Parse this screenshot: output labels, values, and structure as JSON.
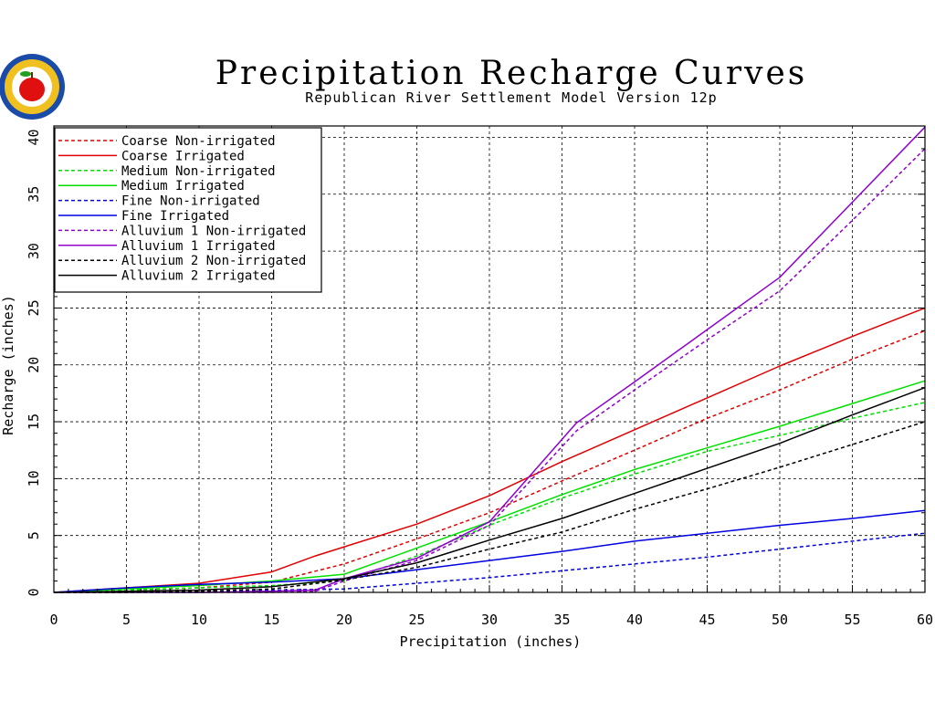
{
  "chart_data": {
    "type": "line",
    "title": "Precipitation Recharge Curves",
    "subtitle": "Republican River Settlement Model Version 12p",
    "xlabel": "Precipitation (inches)",
    "ylabel": "Recharge (inches)",
    "xlim": [
      0,
      60
    ],
    "ylim": [
      0,
      41
    ],
    "xticks": [
      0,
      5,
      10,
      15,
      20,
      25,
      30,
      35,
      40,
      45,
      50,
      55,
      60
    ],
    "yticks": [
      0,
      5,
      10,
      15,
      20,
      25,
      30,
      35,
      40
    ],
    "grid": true,
    "legend_position": "top-left",
    "series": [
      {
        "name": "Coarse Non-irrigated",
        "color": "#e00000",
        "dash": true,
        "x": [
          0,
          5,
          10,
          15,
          20,
          25,
          30,
          35,
          40,
          45,
          50,
          55,
          60
        ],
        "y": [
          0,
          0.2,
          0.4,
          0.9,
          2.5,
          4.7,
          7.0,
          9.8,
          12.5,
          15.3,
          17.8,
          20.5,
          23.0
        ]
      },
      {
        "name": "Coarse Irrigated",
        "color": "#e00000",
        "dash": false,
        "x": [
          0,
          5,
          10,
          15,
          18,
          20,
          25,
          30,
          35,
          40,
          45,
          50,
          55,
          60
        ],
        "y": [
          0,
          0.4,
          0.8,
          1.8,
          3.2,
          4.0,
          6.0,
          8.5,
          11.5,
          14.3,
          17.1,
          19.9,
          22.5,
          25.0
        ]
      },
      {
        "name": "Medium Non-irrigated",
        "color": "#00e000",
        "dash": true,
        "x": [
          0,
          5,
          10,
          15,
          20,
          25,
          30,
          35,
          40,
          45,
          50,
          55,
          60
        ],
        "y": [
          0,
          0.2,
          0.4,
          0.6,
          1.0,
          3.2,
          5.9,
          8.3,
          10.4,
          12.4,
          13.8,
          15.3,
          16.7
        ]
      },
      {
        "name": "Medium Irrigated",
        "color": "#00e000",
        "dash": false,
        "x": [
          0,
          5,
          10,
          15,
          20,
          25,
          30,
          35,
          40,
          45,
          50,
          55,
          60
        ],
        "y": [
          0,
          0.3,
          0.6,
          1.0,
          1.6,
          3.9,
          6.2,
          8.6,
          10.8,
          12.7,
          14.6,
          16.6,
          18.6
        ]
      },
      {
        "name": "Fine Non-irrigated",
        "color": "#0000e0",
        "dash": true,
        "x": [
          0,
          5,
          10,
          15,
          20,
          25,
          30,
          35,
          40,
          45,
          50,
          55,
          60
        ],
        "y": [
          0,
          0.05,
          0.1,
          0.2,
          0.3,
          0.8,
          1.3,
          1.9,
          2.5,
          3.1,
          3.8,
          4.5,
          5.2
        ]
      },
      {
        "name": "Fine Irrigated",
        "color": "#0000e0",
        "dash": false,
        "x": [
          0,
          5,
          10,
          15,
          20,
          25,
          30,
          35,
          40,
          45,
          50,
          55,
          60
        ],
        "y": [
          0,
          0.4,
          0.7,
          0.9,
          1.2,
          2.0,
          2.8,
          3.6,
          4.5,
          5.2,
          5.9,
          6.5,
          7.2
        ]
      },
      {
        "name": "Alluvium 1 Non-irrigated",
        "color": "#9000d0",
        "dash": true,
        "x": [
          0,
          5,
          10,
          15,
          18,
          20,
          25,
          30,
          36,
          40,
          45,
          50,
          55,
          60
        ],
        "y": [
          0,
          0,
          0,
          0,
          0.1,
          1.0,
          2.8,
          5.9,
          14.2,
          17.8,
          22.2,
          26.5,
          32.7,
          39.0
        ]
      },
      {
        "name": "Alluvium 1 Irrigated",
        "color": "#9000d0",
        "dash": false,
        "x": [
          0,
          5,
          10,
          15,
          18,
          20,
          25,
          30,
          36,
          40,
          45,
          50,
          55,
          60
        ],
        "y": [
          0,
          0,
          0,
          0.1,
          0.2,
          1.2,
          3.0,
          6.2,
          14.9,
          18.5,
          23.1,
          27.7,
          34.3,
          40.9
        ]
      },
      {
        "name": "Alluvium 2 Non-irrigated",
        "color": "#000000",
        "dash": true,
        "x": [
          0,
          5,
          10,
          15,
          20,
          25,
          30,
          35,
          40,
          45,
          50,
          55,
          60
        ],
        "y": [
          0,
          0,
          0.1,
          0.3,
          1.1,
          2.2,
          3.8,
          5.3,
          7.3,
          9.1,
          11.0,
          13.0,
          15.0
        ]
      },
      {
        "name": "Alluvium 2 Irrigated",
        "color": "#000000",
        "dash": false,
        "x": [
          0,
          5,
          10,
          15,
          20,
          25,
          30,
          35,
          40,
          45,
          50,
          55,
          60
        ],
        "y": [
          0,
          0.1,
          0.2,
          0.5,
          1.2,
          2.6,
          4.6,
          6.5,
          8.7,
          10.9,
          13.1,
          15.6,
          18.0
        ]
      }
    ]
  }
}
